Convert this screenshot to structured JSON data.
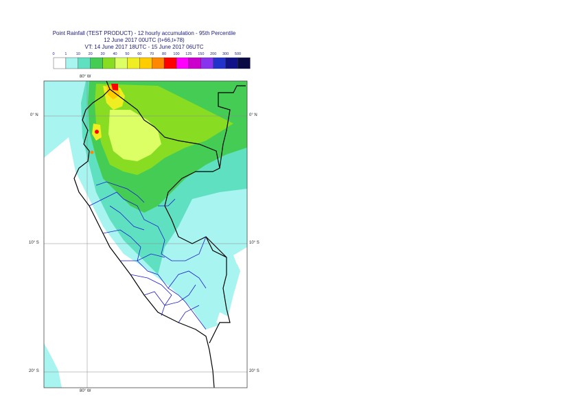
{
  "title": {
    "line1": "Point Rainfall (TEST PRODUCT) - 12 hourly accumulation - 95th Percentile",
    "line2": "12 June 2017 00UTC (t+66,t+78)",
    "line3": "VT: 14 June 2017 18UTC - 15 June 2017 06UTC"
  },
  "legend": {
    "thresholds": [
      "0",
      "1",
      "10",
      "20",
      "30",
      "40",
      "50",
      "60",
      "70",
      "80",
      "100",
      "125",
      "150",
      "200",
      "300",
      "500"
    ],
    "colors": [
      "#ffffff",
      "#a8f4f0",
      "#5fe0c0",
      "#44cc55",
      "#88dd22",
      "#ddff66",
      "#eeee22",
      "#ffcc00",
      "#ff8800",
      "#ff0000",
      "#ff00ff",
      "#cc00cc",
      "#8833ee",
      "#2233cc",
      "#111188",
      "#0a0a44"
    ]
  },
  "axes": {
    "top_lon": "80° W",
    "bottom_lon": "80° W",
    "lat_left": [
      "0° N",
      "10° S",
      "20° S"
    ],
    "lat_right": [
      "0° N",
      "10° S",
      "20° S"
    ]
  }
}
